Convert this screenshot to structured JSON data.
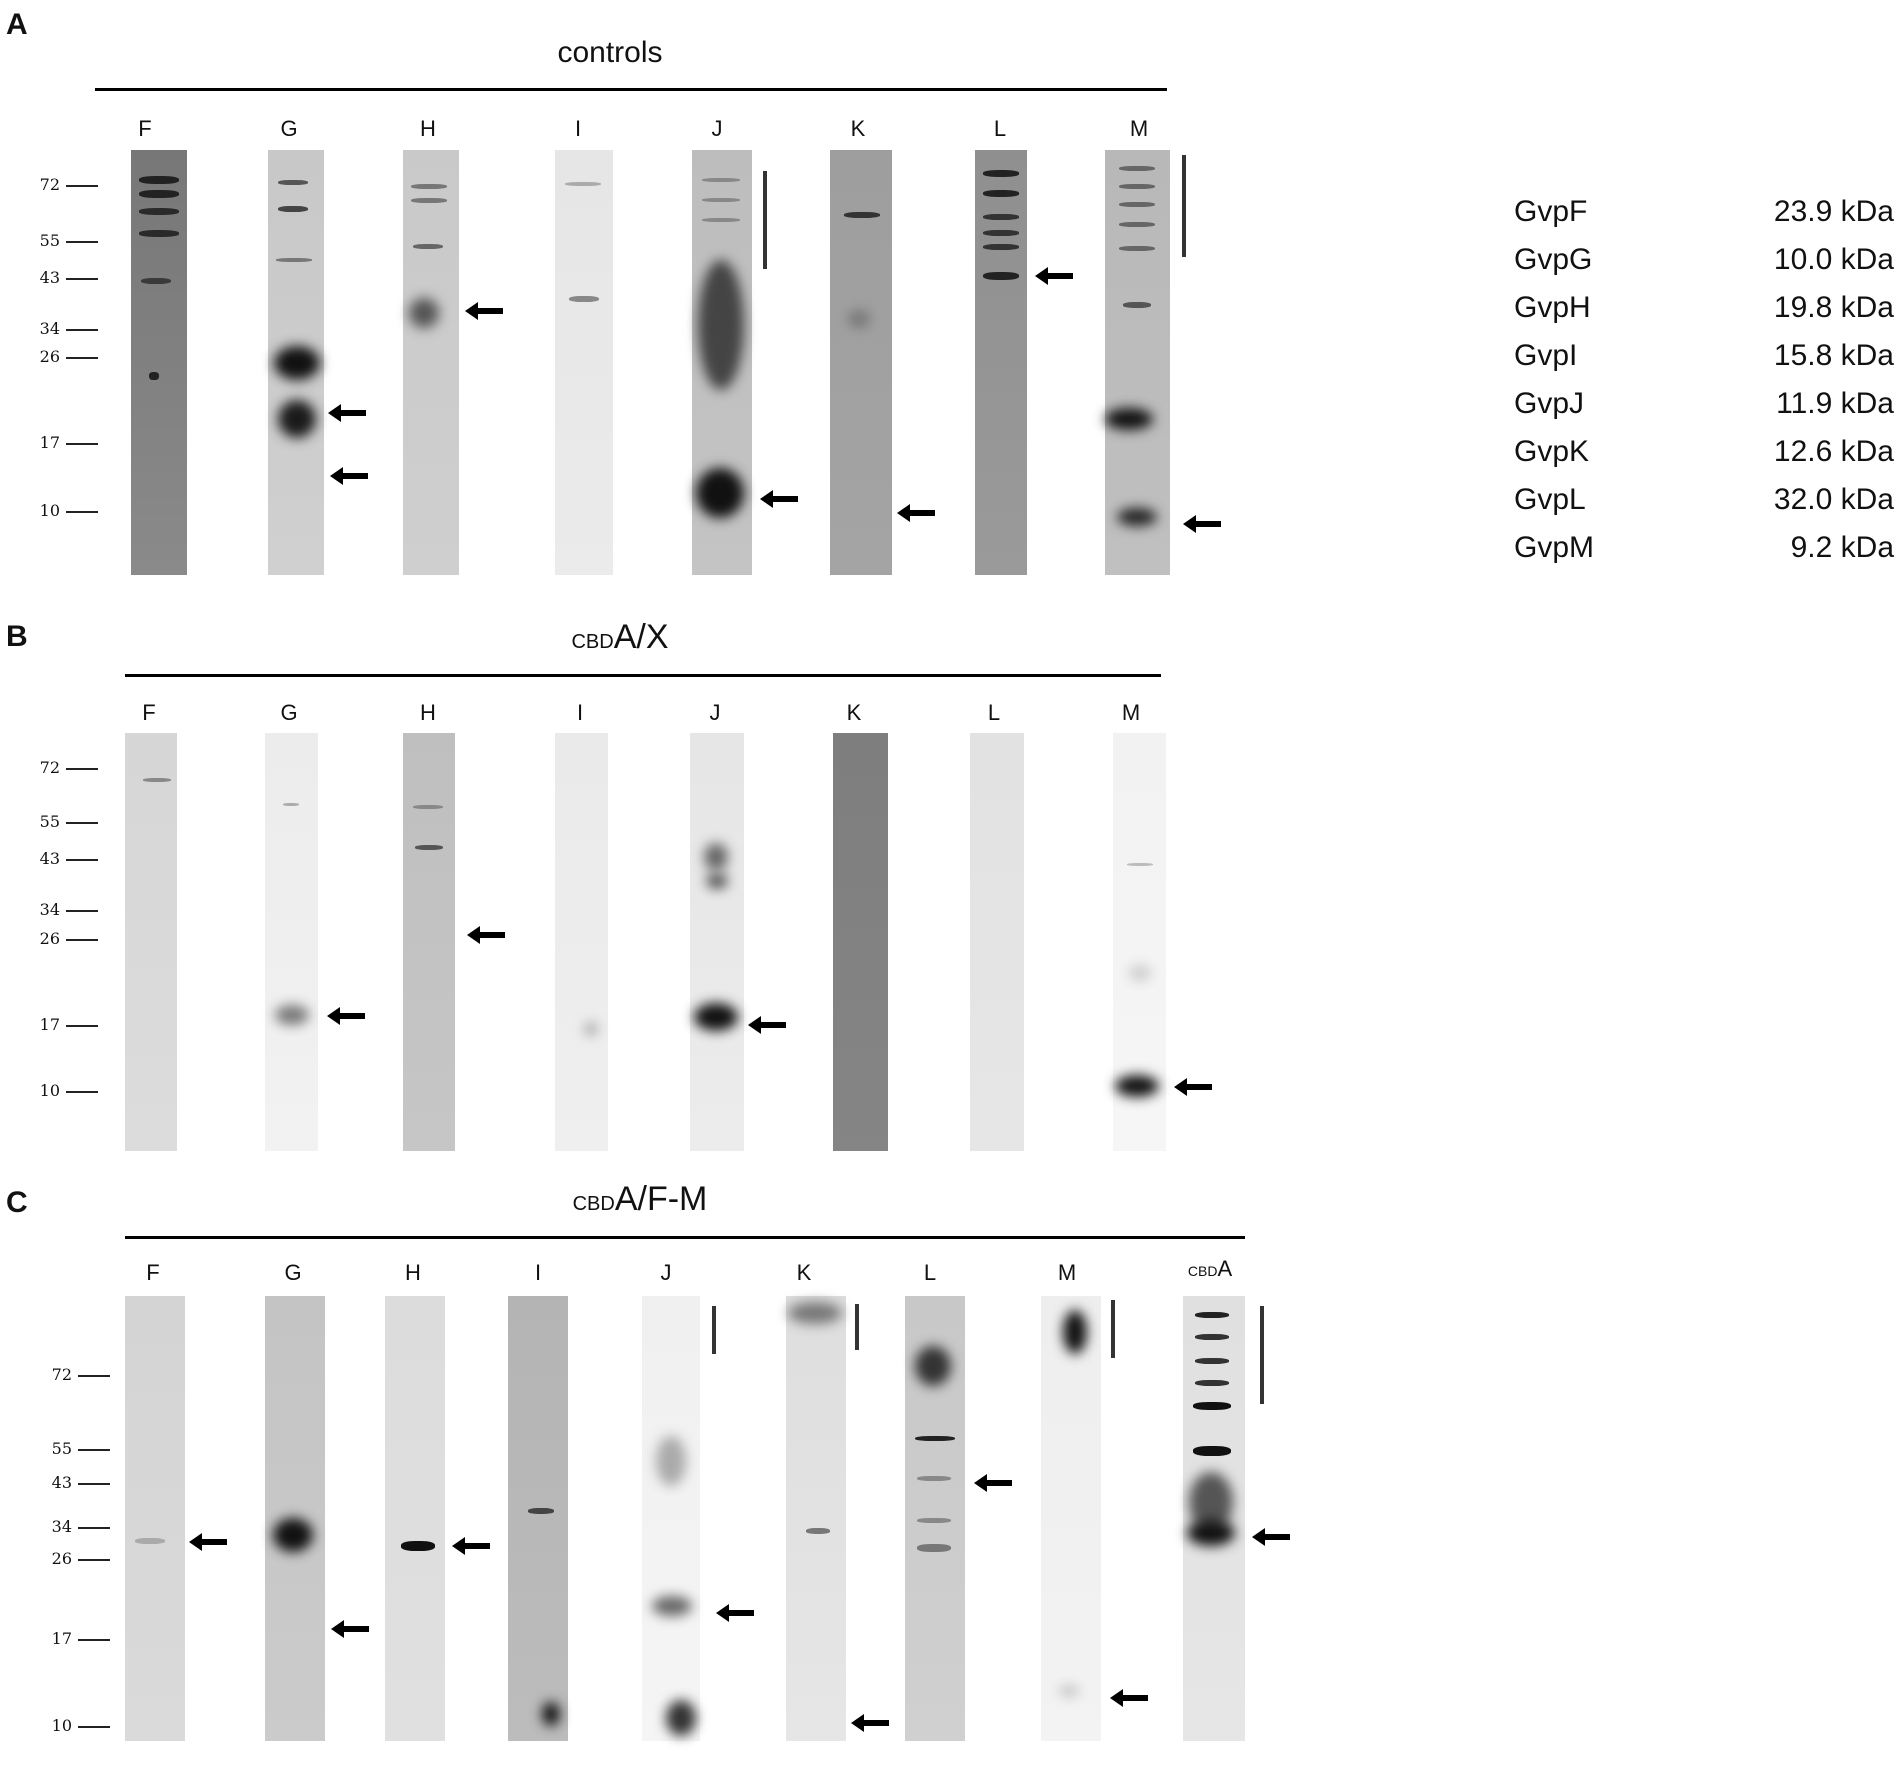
{
  "panels": [
    {
      "label": "A",
      "title": "controls",
      "lanes": [
        "F",
        "G",
        "H",
        "I",
        "J",
        "K",
        "L",
        "M"
      ],
      "markers": [
        "72",
        "55",
        "43",
        "34",
        "26",
        "17",
        "10"
      ]
    },
    {
      "label": "B",
      "title_sub": "CBD",
      "title": "A/X",
      "lanes": [
        "F",
        "G",
        "H",
        "I",
        "J",
        "K",
        "L",
        "M"
      ],
      "markers": [
        "72",
        "55",
        "43",
        "34",
        "26",
        "17",
        "10"
      ]
    },
    {
      "label": "C",
      "title_sub": "CBD",
      "title": "A/F-M",
      "lanes": [
        "F",
        "G",
        "H",
        "I",
        "J",
        "K",
        "L",
        "M"
      ],
      "last_lane_sub": "CBD",
      "last_lane": "A",
      "markers": [
        "72",
        "55",
        "43",
        "34",
        "26",
        "17",
        "10"
      ]
    }
  ],
  "legend": [
    {
      "name": "GvpF",
      "mass": "23.9 kDa"
    },
    {
      "name": "GvpG",
      "mass": "10.0 kDa"
    },
    {
      "name": "GvpH",
      "mass": "19.8 kDa"
    },
    {
      "name": "GvpI",
      "mass": "15.8 kDa"
    },
    {
      "name": "GvpJ",
      "mass": "11.9 kDa"
    },
    {
      "name": "GvpK",
      "mass": "12.6 kDa"
    },
    {
      "name": "GvpL",
      "mass": "32.0 kDa"
    },
    {
      "name": "GvpM",
      "mass": "9.2 kDa"
    }
  ]
}
